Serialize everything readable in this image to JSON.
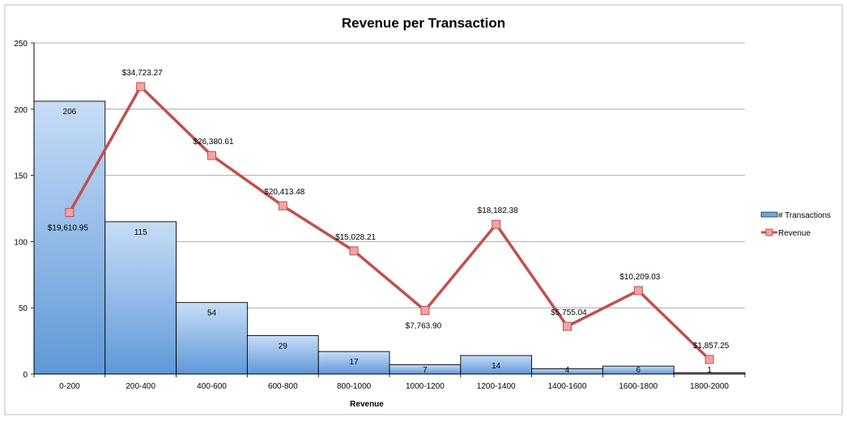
{
  "chart_data": {
    "type": "bar",
    "title": "Revenue per Transaction",
    "xlabel": "Revenue",
    "ylabel": "",
    "ylim": [
      0,
      250
    ],
    "yticks": [
      0,
      50,
      100,
      150,
      200,
      250
    ],
    "grid": true,
    "legend_position": "right",
    "categories": [
      "0-200",
      "200-400",
      "400-600",
      "600-800",
      "800-1000",
      "1000-1200",
      "1200-1400",
      "1400-1600",
      "1600-1800",
      "1800-2000"
    ],
    "series": [
      {
        "name": "# Transactions",
        "type": "bar",
        "color": "#8db8ea",
        "values": [
          206,
          115,
          54,
          29,
          17,
          7,
          14,
          4,
          6,
          1
        ],
        "labels": [
          "206",
          "115",
          "54",
          "29",
          "17",
          "7",
          "14",
          "4",
          "6",
          "1"
        ]
      },
      {
        "name": "Revenue",
        "type": "line",
        "color": "#c0504d",
        "plot_values": [
          122,
          217,
          165,
          127,
          93,
          48,
          113,
          36,
          63,
          11
        ],
        "labels": [
          "$19,610.95",
          "$34,723.27",
          "$26,380.61",
          "$20,413.48",
          "$15,028.21",
          "$7,763.90",
          "$18,182.38",
          "$5,755.04",
          "$10,209.03",
          "$1,857.25"
        ],
        "label_position": [
          "below",
          "above",
          "above",
          "above",
          "above",
          "below",
          "above",
          "above",
          "above",
          "above"
        ]
      }
    ]
  }
}
